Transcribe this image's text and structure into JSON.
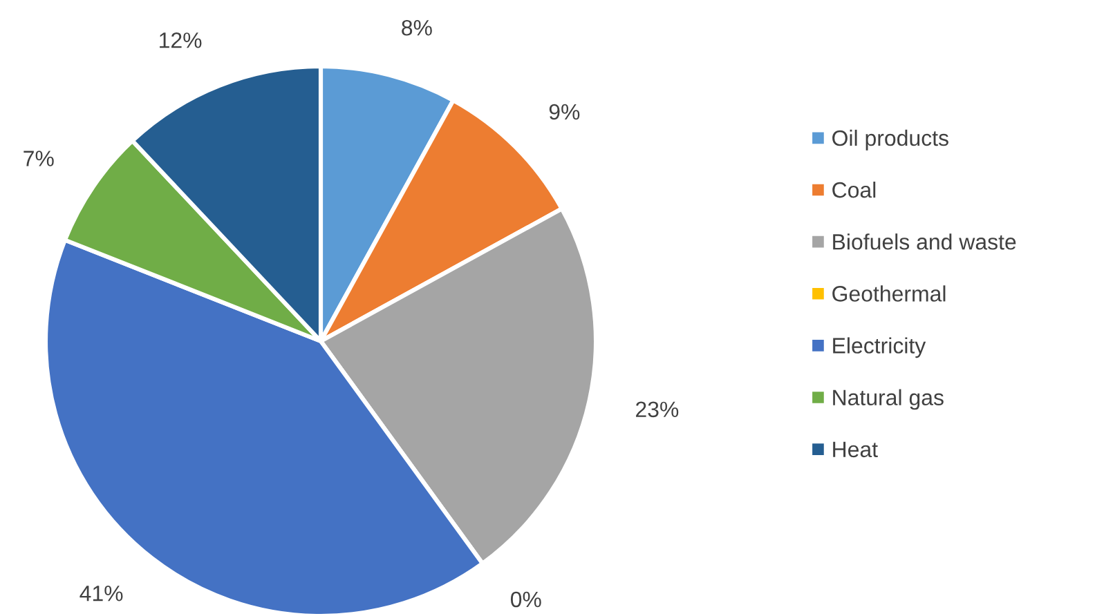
{
  "chart_data": {
    "type": "pie",
    "categories": [
      "Oil products",
      "Coal",
      "Biofuels and waste",
      "Geothermal",
      "Electricity",
      "Natural gas",
      "Heat"
    ],
    "values": [
      8,
      9,
      23,
      0,
      41,
      7,
      12
    ],
    "colors": [
      "#5b9bd5",
      "#ed7d31",
      "#a5a5a5",
      "#ffc000",
      "#4472c4",
      "#70ad47",
      "#255e91"
    ],
    "value_labels": [
      "8%",
      "9%",
      "23%",
      "0%",
      "41%",
      "7%",
      "12%"
    ],
    "legend": "right"
  }
}
